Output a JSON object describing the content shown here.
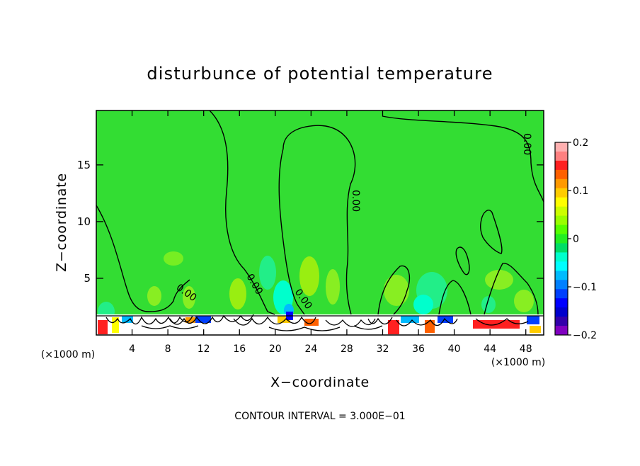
{
  "chart_data": {
    "type": "heatmap",
    "title": "disturbunce of potential temperature",
    "xlabel": "X−coordinate",
    "ylabel": "Z−coordinate",
    "x_unit_left": "(×1000 m)",
    "x_unit_right": "(×1000 m)",
    "x_ticks": [
      4,
      8,
      12,
      16,
      20,
      24,
      28,
      32,
      36,
      40,
      44,
      48
    ],
    "y_ticks": [
      5,
      10,
      15
    ],
    "xlim": [
      0,
      50
    ],
    "ylim": [
      0,
      19.8
    ],
    "contour_labels": [
      "0.00",
      "0.00",
      "0.00",
      "0.00",
      "0.00"
    ],
    "contour_interval_text": "CONTOUR INTERVAL = 3.000E−01",
    "colorbar": {
      "range": [
        -0.2,
        0.2
      ],
      "tick_labels": [
        "0.2",
        "0.1",
        "0",
        "−0.1",
        "−0.2"
      ],
      "tick_values": [
        0.2,
        0.1,
        0,
        -0.1,
        -0.2
      ],
      "colors": [
        "#ffb0b0",
        "#ff8080",
        "#ff2020",
        "#ff6000",
        "#ff9900",
        "#ffcc00",
        "#ffff00",
        "#ccff00",
        "#99ff00",
        "#55ff00",
        "#22ee22",
        "#00dd66",
        "#00ffcc",
        "#00ffff",
        "#00bbff",
        "#0080ff",
        "#0040ff",
        "#0000ff",
        "#0000cc",
        "#3300aa",
        "#8000c0"
      ]
    },
    "background_value_color": "#33dd33"
  }
}
